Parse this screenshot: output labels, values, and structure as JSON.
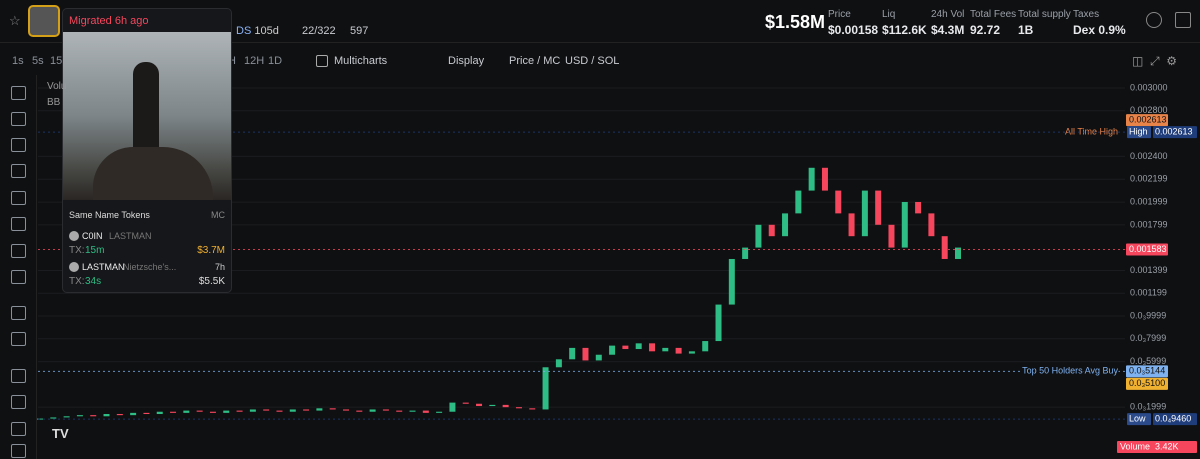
{
  "header": {
    "market_cap": "$1.58M",
    "stats": [
      {
        "label": "Price",
        "value": "$0.00158"
      },
      {
        "label": "Liq",
        "value": "$112.6K"
      },
      {
        "label": "24h Vol",
        "value": "$4.3M"
      },
      {
        "label": "Total Fees",
        "value": "92.72"
      },
      {
        "label": "Total supply",
        "value": "1B"
      },
      {
        "label": "Taxes",
        "value": "Dex 0.9%"
      }
    ],
    "token": {
      "dex": "DS",
      "age": "105d",
      "holders": "22/322",
      "views": "597"
    }
  },
  "toolbar": {
    "intervals": [
      "1s",
      "5s",
      "15",
      "H",
      "12H",
      "1D"
    ],
    "multicharts": "Multicharts",
    "display": "Display",
    "price_mc": "Price / MC",
    "usd_sol": "USD / SOL"
  },
  "popup": {
    "status": "Migrated 6h ago",
    "section": "Same Name Tokens",
    "column": "MC",
    "tokens": [
      {
        "symbol": "C0IN",
        "name": "LASTMAN",
        "tx_label": "TX:",
        "tx": "15m",
        "age": "",
        "mc": "$3.7M"
      },
      {
        "symbol": "LASTMAN",
        "name": "Nietzsche's...",
        "tx_label": "TX:",
        "tx": "34s",
        "age": "7h",
        "mc": "$5.5K"
      }
    ]
  },
  "indicators": [
    "Volu",
    "BB"
  ],
  "chart_data": {
    "type": "candlestick",
    "values": [
      0.0001,
      0.00011,
      0.00012,
      0.00013,
      0.00012,
      0.00014,
      0.00013,
      0.00015,
      0.00014,
      0.00016,
      0.00015,
      0.00017,
      0.00016,
      0.00015,
      0.00017,
      0.00016,
      0.00018,
      0.00017,
      0.00016,
      0.00018,
      0.00017,
      0.00019,
      0.00018,
      0.00017,
      0.00016,
      0.00018,
      0.00017,
      0.00016,
      0.00017,
      0.00015,
      0.00016,
      0.00024,
      0.00023,
      0.00021,
      0.00022,
      0.0002,
      0.00019,
      0.00018,
      0.00055,
      0.00062,
      0.00072,
      0.00061,
      0.00066,
      0.00074,
      0.00071,
      0.00076,
      0.00069,
      0.00072,
      0.00067,
      0.00069,
      0.00078,
      0.0011,
      0.0015,
      0.0016,
      0.0018,
      0.0017,
      0.0019,
      0.0021,
      0.0023,
      0.0021,
      0.0019,
      0.0017,
      0.0021,
      0.0018,
      0.0016,
      0.002,
      0.0019,
      0.0017,
      0.0015,
      0.0016
    ],
    "up_color": "#2ebd85",
    "down_color": "#f6465d",
    "ylim": [
      -8.8e-05,
      0.003114
    ],
    "yticks": [
      {
        "value": 0.003,
        "label": "0.003000"
      },
      {
        "value": 0.0028,
        "label": "0.002800"
      },
      {
        "value": 0.0024,
        "label": "0.002400"
      },
      {
        "value": 0.002199,
        "label": "0.002199"
      },
      {
        "value": 0.001999,
        "label": "0.001999"
      },
      {
        "value": 0.001799,
        "label": "0.001799"
      },
      {
        "value": 0.001399,
        "label": "0.001399"
      },
      {
        "value": 0.001199,
        "label": "0.001199"
      },
      {
        "value": 0.0009999,
        "label": "0.0₃9999"
      },
      {
        "value": 0.0007999,
        "label": "0.0₃7999"
      },
      {
        "value": 0.0005999,
        "label": "0.0₃5999"
      },
      {
        "value": 0.0001999,
        "label": "0.0₃1999"
      }
    ],
    "levels": [
      {
        "name": "All Time High",
        "value": 0.002613,
        "label": "0.002613",
        "color": "#e8834a"
      },
      {
        "tag": "High",
        "value": 0.002613,
        "label": "0.002613",
        "color": "#1f3d7a"
      },
      {
        "value": 0.001583,
        "label": "0.001583",
        "color": "#f6465d"
      },
      {
        "name": "Top 50 Holders Avg Buy",
        "value": 0.0005144,
        "label": "0.0₃5144",
        "color": "#7fb2f0"
      },
      {
        "value": 0.00051,
        "label": "0.0₃5100",
        "color": "#f0b030"
      },
      {
        "tag": "Low",
        "value": 9.46e-05,
        "label": "0.0₄9460",
        "color": "#1f3d7a"
      }
    ],
    "volume": {
      "label": "Volume",
      "value": "3.42K"
    }
  }
}
